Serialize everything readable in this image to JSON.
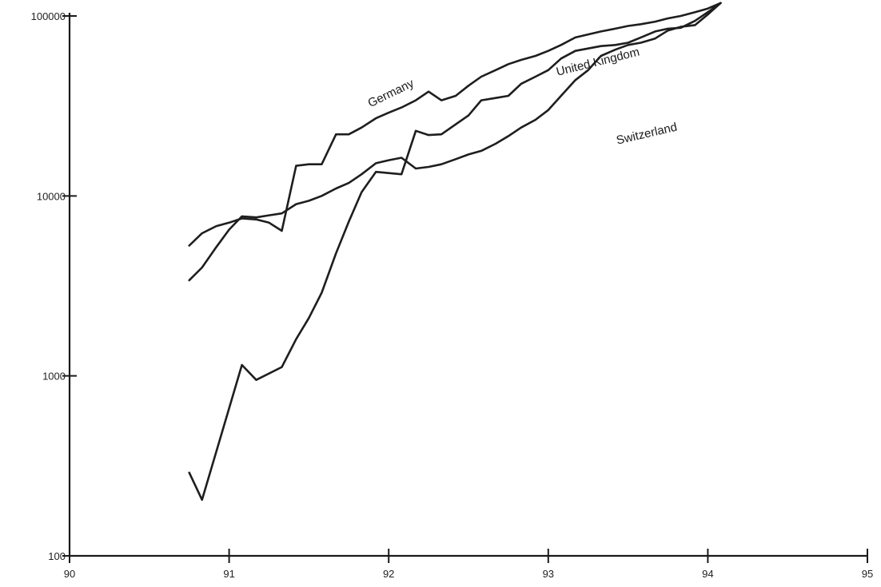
{
  "chart_data": {
    "type": "line",
    "title": "",
    "xlabel": "",
    "ylabel": "",
    "x_scale": "linear",
    "y_scale": "log",
    "xlim": [
      90,
      95
    ],
    "ylim": [
      100,
      100000
    ],
    "x_ticks": [
      90,
      91,
      92,
      93,
      94,
      95
    ],
    "x_tick_labels": [
      "90",
      "91",
      "92",
      "93",
      "94",
      "95"
    ],
    "y_ticks": [
      100,
      1000,
      10000,
      100000
    ],
    "y_tick_labels": [
      "100",
      "1000",
      "10000",
      "100000"
    ],
    "grid": false,
    "legend": "none",
    "series": [
      {
        "name": "Germany",
        "x": [
          90.75,
          90.83,
          90.92,
          91.0,
          91.08,
          91.17,
          91.25,
          91.33,
          91.42,
          91.5,
          91.58,
          91.67,
          91.75,
          91.83,
          91.92,
          92.0,
          92.08,
          92.17,
          92.25,
          92.33,
          92.42,
          92.5,
          92.58,
          92.67,
          92.75,
          92.83,
          92.92,
          93.0,
          93.08,
          93.17,
          93.25,
          93.33,
          93.42,
          93.5,
          93.58,
          93.67,
          93.75,
          93.83,
          93.92,
          94.0,
          94.08
        ],
        "y": [
          5300,
          6200,
          6800,
          7100,
          7500,
          7400,
          7100,
          6400,
          14700,
          15000,
          15000,
          22000,
          22000,
          24000,
          27000,
          29000,
          31000,
          34000,
          38000,
          34000,
          36000,
          41000,
          46000,
          50000,
          54000,
          57000,
          60000,
          64000,
          69000,
          76000,
          79000,
          82000,
          85000,
          88000,
          90000,
          93000,
          97000,
          100000,
          105000,
          110000,
          118000
        ]
      },
      {
        "name": "United Kingdom",
        "x": [
          90.75,
          90.83,
          90.92,
          91.0,
          91.08,
          91.17,
          91.25,
          91.33,
          91.42,
          91.5,
          91.58,
          91.67,
          91.75,
          91.83,
          91.92,
          92.0,
          92.08,
          92.17,
          92.25,
          92.33,
          92.42,
          92.5,
          92.58,
          92.67,
          92.75,
          92.83,
          92.92,
          93.0,
          93.08,
          93.17,
          93.25,
          93.33,
          93.42,
          93.5,
          93.58,
          93.67,
          93.75,
          93.83,
          93.92,
          94.0,
          94.08
        ],
        "y": [
          3400,
          4000,
          5200,
          6500,
          7700,
          7600,
          7800,
          8000,
          9000,
          9400,
          10000,
          11000,
          11800,
          13200,
          15200,
          15800,
          16300,
          14200,
          14500,
          15000,
          16000,
          17000,
          17800,
          19500,
          21500,
          24000,
          26500,
          30000,
          36000,
          44000,
          50000,
          60000,
          65000,
          69000,
          71000,
          75000,
          83000,
          87000,
          89000,
          102000,
          118000
        ]
      },
      {
        "name": "Switzerland",
        "x": [
          90.75,
          90.83,
          90.92,
          91.08,
          91.17,
          91.33,
          91.42,
          91.5,
          91.58,
          91.67,
          91.75,
          91.83,
          91.92,
          92.08,
          92.17,
          92.25,
          92.33,
          92.42,
          92.5,
          92.58,
          92.67,
          92.75,
          92.83,
          92.92,
          93.0,
          93.08,
          93.17,
          93.25,
          93.33,
          93.42,
          93.5,
          93.58,
          93.67,
          93.75,
          93.83,
          93.92,
          94.0,
          94.08
        ],
        "y": [
          290,
          205,
          380,
          1150,
          950,
          1120,
          1600,
          2100,
          2900,
          4800,
          7200,
          10500,
          13600,
          13200,
          23000,
          21800,
          22000,
          25000,
          28000,
          34000,
          35000,
          36000,
          42000,
          46000,
          50000,
          58000,
          64000,
          66000,
          68000,
          69000,
          71000,
          76000,
          82000,
          85000,
          86000,
          94000,
          105000,
          118000
        ]
      }
    ],
    "annotations": [
      {
        "text": "Germany",
        "series": "Germany"
      },
      {
        "text": "United Kingdom",
        "series": "United Kingdom"
      },
      {
        "text": "Switzerland",
        "series": "Switzerland"
      }
    ]
  }
}
